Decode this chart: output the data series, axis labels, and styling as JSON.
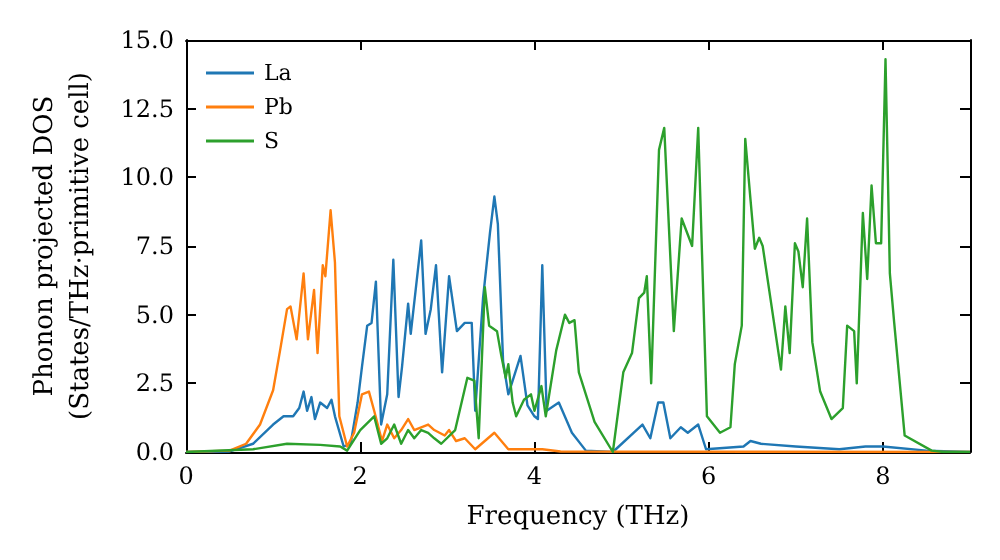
{
  "chart_data": {
    "type": "line",
    "xlabel": "Frequency (THz)",
    "ylabel": "Phonon projected DOS\n(States/THz·primitive cell)",
    "xlim": [
      0,
      9
    ],
    "xticks": [
      0,
      2,
      4,
      6,
      8
    ],
    "ylim": [
      0,
      15
    ],
    "yticks": [
      {
        "value": 0,
        "label": "0.0"
      },
      {
        "value": 2.5,
        "label": "2.5"
      },
      {
        "value": 5,
        "label": "5.0"
      },
      {
        "value": 7.5,
        "label": "7.5"
      },
      {
        "value": 10,
        "label": "10.0"
      },
      {
        "value": 12.5,
        "label": "12.5"
      },
      {
        "value": 15,
        "label": "15.0"
      }
    ],
    "grid": false,
    "legend": "top left",
    "marker": "none",
    "line_style": "solid",
    "series": [
      {
        "name": "La",
        "color": "#1f77b4",
        "x": [
          0,
          0.5,
          0.77,
          1.0,
          1.12,
          1.23,
          1.3,
          1.35,
          1.39,
          1.44,
          1.48,
          1.54,
          1.62,
          1.67,
          1.71,
          1.81,
          1.89,
          1.97,
          2.02,
          2.08,
          2.13,
          2.18,
          2.24,
          2.31,
          2.38,
          2.44,
          2.48,
          2.55,
          2.58,
          2.7,
          2.75,
          2.81,
          2.87,
          2.94,
          3.02,
          3.11,
          3.2,
          3.28,
          3.32,
          3.41,
          3.49,
          3.54,
          3.58,
          3.64,
          3.7,
          3.78,
          3.84,
          3.92,
          4.0,
          4.04,
          4.09,
          4.14,
          4.28,
          4.43,
          4.59,
          4.9,
          5.24,
          5.33,
          5.42,
          5.48,
          5.56,
          5.68,
          5.76,
          5.88,
          5.97,
          6.4,
          6.48,
          6.6,
          7.0,
          7.5,
          7.8,
          8.0,
          8.5,
          9.0
        ],
        "values": [
          0,
          0.02,
          0.3,
          1.0,
          1.3,
          1.3,
          1.6,
          2.2,
          1.5,
          2.0,
          1.2,
          1.8,
          1.6,
          1.9,
          1.3,
          0.2,
          0.3,
          1.8,
          3.1,
          4.6,
          4.7,
          6.2,
          1.0,
          2.1,
          7.0,
          2.0,
          3.1,
          5.4,
          4.3,
          7.7,
          4.3,
          5.2,
          6.8,
          2.9,
          6.4,
          4.4,
          4.7,
          4.7,
          1.5,
          5.6,
          8.0,
          9.3,
          8.3,
          3.3,
          2.1,
          2.9,
          3.5,
          1.7,
          1.3,
          1.2,
          6.8,
          1.5,
          1.8,
          0.7,
          0.05,
          0,
          1.0,
          0.5,
          1.8,
          1.8,
          0.5,
          0.9,
          0.7,
          1.0,
          0.1,
          0.2,
          0.4,
          0.3,
          0.2,
          0.1,
          0.2,
          0.2,
          0.05,
          0
        ]
      },
      {
        "name": "Pb",
        "color": "#ff7f0e",
        "x": [
          0,
          0.5,
          0.69,
          0.85,
          1.0,
          1.08,
          1.16,
          1.2,
          1.27,
          1.35,
          1.4,
          1.47,
          1.51,
          1.57,
          1.6,
          1.66,
          1.71,
          1.76,
          1.85,
          1.93,
          2.02,
          2.1,
          2.16,
          2.25,
          2.31,
          2.39,
          2.47,
          2.55,
          2.62,
          2.7,
          2.78,
          2.85,
          2.97,
          3.02,
          3.1,
          3.2,
          3.32,
          3.54,
          3.7,
          4.09,
          4.3,
          9.0
        ],
        "values": [
          0,
          0.05,
          0.3,
          1.0,
          2.25,
          3.7,
          5.2,
          5.3,
          4.1,
          6.5,
          4.1,
          5.9,
          3.6,
          6.8,
          6.4,
          8.8,
          6.9,
          1.3,
          0.2,
          0.7,
          2.1,
          2.2,
          1.5,
          0.4,
          1.0,
          0.5,
          0.8,
          1.2,
          0.8,
          0.9,
          1.0,
          0.8,
          0.6,
          0.8,
          0.4,
          0.5,
          0.1,
          0.7,
          0.1,
          0.1,
          0.02,
          0
        ]
      },
      {
        "name": "S",
        "color": "#2ca02c",
        "x": [
          0,
          0.77,
          1.16,
          1.54,
          1.77,
          1.85,
          2.0,
          2.16,
          2.24,
          2.31,
          2.39,
          2.47,
          2.55,
          2.62,
          2.7,
          2.78,
          2.85,
          2.93,
          3.09,
          3.23,
          3.31,
          3.36,
          3.43,
          3.48,
          3.57,
          3.62,
          3.67,
          3.7,
          3.75,
          3.79,
          3.88,
          3.96,
          4.0,
          4.08,
          4.13,
          4.25,
          4.35,
          4.4,
          4.46,
          4.51,
          4.69,
          4.9,
          5.02,
          5.12,
          5.2,
          5.26,
          5.29,
          5.34,
          5.43,
          5.49,
          5.6,
          5.69,
          5.81,
          5.88,
          5.98,
          6.13,
          6.25,
          6.3,
          6.38,
          6.42,
          6.48,
          6.53,
          6.58,
          6.62,
          6.83,
          6.88,
          6.93,
          6.99,
          7.03,
          7.08,
          7.13,
          7.19,
          7.28,
          7.41,
          7.54,
          7.59,
          7.67,
          7.7,
          7.77,
          7.82,
          7.87,
          7.92,
          7.98,
          8.03,
          8.08,
          8.13,
          8.25,
          8.56,
          8.7,
          9.0
        ],
        "values": [
          0,
          0.1,
          0.3,
          0.26,
          0.2,
          0.05,
          0.8,
          1.3,
          0.3,
          0.5,
          1.0,
          0.3,
          0.8,
          0.5,
          0.8,
          0.7,
          0.5,
          0.3,
          0.8,
          2.7,
          2.6,
          0.5,
          6.0,
          4.6,
          4.4,
          3.5,
          2.7,
          3.2,
          1.8,
          1.3,
          1.9,
          2.1,
          1.5,
          2.4,
          1.3,
          3.7,
          5.0,
          4.7,
          4.8,
          2.9,
          1.1,
          0,
          2.9,
          3.6,
          5.6,
          5.8,
          6.4,
          2.5,
          11.0,
          11.8,
          4.4,
          8.5,
          7.5,
          11.8,
          1.3,
          0.7,
          0.9,
          3.2,
          4.6,
          11.4,
          9.2,
          7.4,
          7.8,
          7.5,
          3.0,
          5.3,
          3.6,
          7.6,
          7.3,
          6.0,
          8.5,
          4.0,
          2.2,
          1.2,
          1.6,
          4.6,
          4.4,
          2.5,
          8.7,
          6.3,
          9.7,
          7.6,
          7.6,
          14.3,
          6.5,
          4.7,
          0.6,
          0.05,
          0,
          0
        ]
      }
    ]
  }
}
